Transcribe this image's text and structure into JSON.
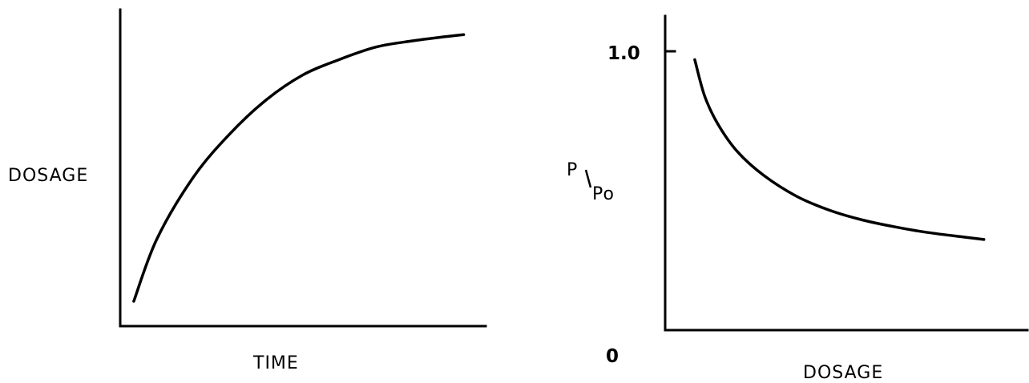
{
  "chart_data": [
    {
      "type": "line",
      "xlabel": "TIME",
      "ylabel": "DOSAGE",
      "xlim": [
        0,
        10
      ],
      "ylim": [
        0,
        1
      ],
      "series": [
        {
          "x": [
            0.37,
            1,
            2,
            3,
            4,
            5,
            6,
            7,
            8,
            9,
            9.4
          ],
          "values": [
            0.08,
            0.28,
            0.48,
            0.62,
            0.73,
            0.81,
            0.86,
            0.9,
            0.92,
            0.935,
            0.94
          ]
        }
      ]
    },
    {
      "type": "line",
      "xlabel": "DOSAGE",
      "ylabel": "P/Po",
      "ylabel_main": "P",
      "ylabel_sub": "Po",
      "ylim": [
        0,
        1.0
      ],
      "xlim": [
        0,
        10
      ],
      "yticks": [
        {
          "value": 0,
          "label": "0"
        },
        {
          "value": 1.0,
          "label": "1.0"
        }
      ],
      "series": [
        {
          "x": [
            0.9,
            1.2,
            1.6,
            2.2,
            3,
            4,
            5,
            6,
            7,
            8,
            9,
            9.7
          ],
          "values": [
            0.97,
            0.84,
            0.74,
            0.64,
            0.555,
            0.48,
            0.43,
            0.395,
            0.37,
            0.35,
            0.335,
            0.325
          ]
        }
      ]
    }
  ]
}
